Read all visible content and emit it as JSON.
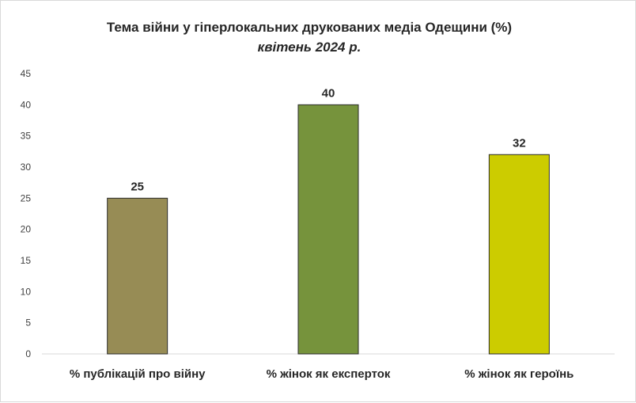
{
  "chart_data": {
    "type": "bar",
    "title": "Тема війни у гіперлокальних друкованих медіа Одещини (%)",
    "subtitle": "квітень 2024 р.",
    "categories": [
      "% публікацій про війну",
      "% жінок як експерток",
      "% жінок як героїнь"
    ],
    "values": [
      25,
      40,
      32
    ],
    "colors": [
      "#978C55",
      "#76933C",
      "#CCCC00"
    ],
    "ylim": [
      0,
      45
    ],
    "yticks": [
      0,
      5,
      10,
      15,
      20,
      25,
      30,
      35,
      40,
      45
    ],
    "grid": false,
    "legend": "none",
    "data_labels": true
  }
}
